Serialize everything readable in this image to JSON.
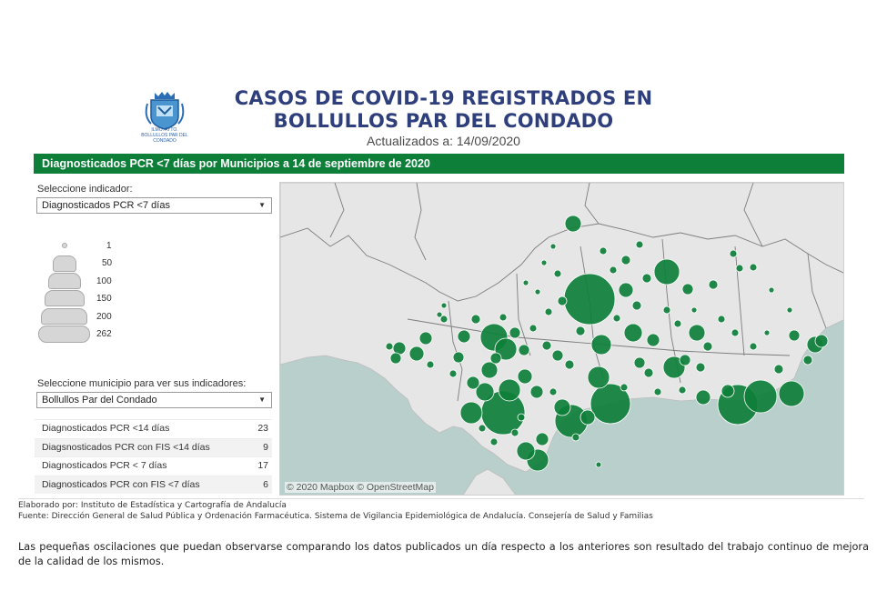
{
  "header": {
    "logo_caption": "ILMO. AYTO. BOLLULLOS PAR DEL CONDADO",
    "title_line1": "CASOS DE COVID-19 REGISTRADOS EN",
    "title_line2": "BOLLULLOS PAR DEL CONDADO",
    "updated": "Actualizados a: 14/09/2020",
    "logo_icon": "coat-of-arms-icon"
  },
  "banner": {
    "text": "Diagnosticados PCR <7 días por Municipios a 14 de septiembre de 2020",
    "color": "#0e7f39"
  },
  "indicator_selector": {
    "label": "Seleccione indicador:",
    "value": "Diagnosticados PCR <7 días"
  },
  "size_legend": {
    "values": [
      "1",
      "50",
      "100",
      "150",
      "200",
      "262"
    ]
  },
  "municipality_selector": {
    "label": "Seleccione municipio para ver sus indicadores:",
    "value": "Bollullos Par del Condado"
  },
  "indicators": [
    {
      "name": "Diagnosticados PCR <14 días",
      "value": "23"
    },
    {
      "name": "Diagsnosticados PCR con FIS <14 días",
      "value": "9"
    },
    {
      "name": "Diagnosticados PCR < 7 días",
      "value": "17"
    },
    {
      "name": "Diagnosticados PCR con FIS <7 días",
      "value": "6"
    }
  ],
  "map": {
    "attribution": "© 2020 Mapbox © OpenStreetMap",
    "bubble_color": "#0e7f39",
    "sea_color": "#b9cfcc",
    "land_color": "#e6e6e6"
  },
  "footer": {
    "credit_line1": "Elaborado por: Instituto de Estadística y Cartografía de Andalucía",
    "credit_line2": "Fuente: Dirección General de Salud Pública y Ordenación Farmacéutica. Sistema de Vigilancia Epidemiológica de Andalucía. Consejería de Salud y Familias",
    "note": "Las pequeñas oscilaciones que puedan observarse comparando los datos publicados un día respecto a los anteriores son resultado del trabajo continuo de mejora de la calidad de los mismos."
  }
}
